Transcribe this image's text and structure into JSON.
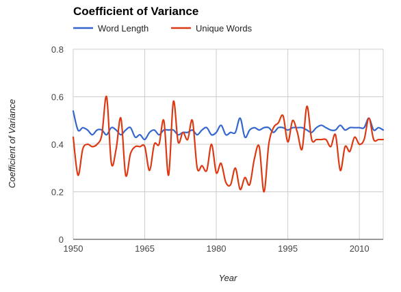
{
  "chart_data": {
    "type": "line",
    "title": "Coefficient of Variance",
    "xlabel": "Year",
    "ylabel": "Coefficient of Variance",
    "xlim": [
      1950,
      2015
    ],
    "ylim": [
      0,
      0.8
    ],
    "x_ticks": [
      1950,
      1965,
      1980,
      1995,
      2010
    ],
    "y_ticks": [
      0,
      0.2,
      0.4,
      0.6,
      0.8
    ],
    "y_tick_labels": [
      "0",
      "0.2",
      "0.4",
      "0.6",
      "0.8"
    ],
    "grid": true,
    "legend_position": "top-left",
    "x": [
      1950,
      1951,
      1952,
      1953,
      1954,
      1955,
      1956,
      1957,
      1958,
      1959,
      1960,
      1961,
      1962,
      1963,
      1964,
      1965,
      1966,
      1967,
      1968,
      1969,
      1970,
      1971,
      1972,
      1973,
      1974,
      1975,
      1976,
      1977,
      1978,
      1979,
      1980,
      1981,
      1982,
      1983,
      1984,
      1985,
      1986,
      1987,
      1988,
      1989,
      1990,
      1991,
      1992,
      1993,
      1994,
      1995,
      1996,
      1997,
      1998,
      1999,
      2000,
      2001,
      2002,
      2003,
      2004,
      2005,
      2006,
      2007,
      2008,
      2009,
      2010,
      2011,
      2012,
      2013,
      2014,
      2015
    ],
    "series": [
      {
        "name": "Word Length",
        "color": "#3366cc",
        "values": [
          0.54,
          0.46,
          0.47,
          0.46,
          0.44,
          0.46,
          0.46,
          0.44,
          0.47,
          0.46,
          0.44,
          0.46,
          0.47,
          0.43,
          0.44,
          0.42,
          0.45,
          0.46,
          0.44,
          0.46,
          0.46,
          0.46,
          0.44,
          0.45,
          0.45,
          0.46,
          0.44,
          0.46,
          0.47,
          0.44,
          0.45,
          0.48,
          0.44,
          0.45,
          0.45,
          0.51,
          0.43,
          0.46,
          0.47,
          0.46,
          0.47,
          0.47,
          0.45,
          0.47,
          0.47,
          0.46,
          0.47,
          0.47,
          0.47,
          0.46,
          0.45,
          0.47,
          0.48,
          0.47,
          0.46,
          0.46,
          0.48,
          0.46,
          0.47,
          0.47,
          0.47,
          0.47,
          0.51,
          0.46,
          0.47,
          0.46
        ]
      },
      {
        "name": "Unique Words",
        "color": "#dc3912",
        "values": [
          0.43,
          0.27,
          0.38,
          0.4,
          0.39,
          0.4,
          0.44,
          0.6,
          0.32,
          0.38,
          0.51,
          0.27,
          0.36,
          0.39,
          0.39,
          0.39,
          0.29,
          0.4,
          0.4,
          0.5,
          0.27,
          0.58,
          0.41,
          0.45,
          0.42,
          0.5,
          0.3,
          0.31,
          0.29,
          0.4,
          0.28,
          0.32,
          0.24,
          0.23,
          0.3,
          0.21,
          0.26,
          0.23,
          0.34,
          0.39,
          0.2,
          0.4,
          0.47,
          0.49,
          0.52,
          0.41,
          0.5,
          0.45,
          0.38,
          0.56,
          0.42,
          0.42,
          0.42,
          0.42,
          0.39,
          0.44,
          0.29,
          0.39,
          0.37,
          0.43,
          0.4,
          0.42,
          0.51,
          0.42,
          0.42,
          0.42
        ]
      }
    ]
  }
}
